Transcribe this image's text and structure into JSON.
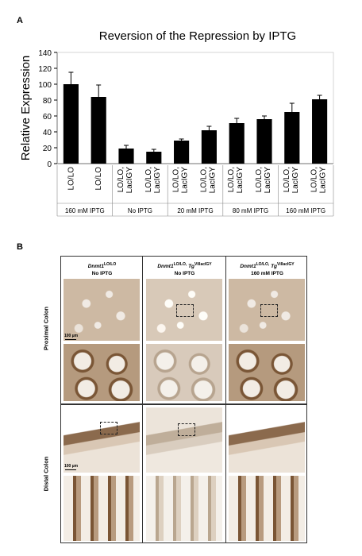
{
  "panel_a": {
    "letter": "A"
  },
  "panel_b": {
    "letter": "B",
    "columns": [
      {
        "gene": "Dnmt1",
        "genotype_sup": "LO/LO",
        "transgene": "",
        "transgene_sup": "",
        "treatment": "No IPTG"
      },
      {
        "gene": "Dnmt1",
        "genotype_sup": "LO/LO,",
        "transgene": "Tg",
        "transgene_sup": "VillacIGY",
        "treatment": "No IPTG"
      },
      {
        "gene": "Dnmt1",
        "genotype_sup": "LO/LO,",
        "transgene": "Tg",
        "transgene_sup": "VillacIGY",
        "treatment": "160 mM IPTG"
      }
    ],
    "rows": [
      "Proximal Colon",
      "Distal Colon"
    ],
    "scale_label": "100 µm"
  },
  "chart_data": {
    "type": "bar",
    "title": "Reversion of the Repression by IPTG",
    "ylabel": "Relative Expression",
    "xlabel": "",
    "ylim": [
      0,
      140
    ],
    "yticks": [
      0,
      20,
      40,
      60,
      80,
      100,
      120,
      140
    ],
    "grid": false,
    "color": "#000000",
    "categories": [
      "LO/LO",
      "LO/LO",
      "LO/LO, LacIGY",
      "LO/LO, LacIGY",
      "LO/LO, LacIGY",
      "LO/LO, LacIGY",
      "LO/LO, LacIGY",
      "LO/LO, LacIGY",
      "LO/LO, LacIGY",
      "LO/LO, LacIGY"
    ],
    "values": [
      100,
      84,
      19,
      15,
      29,
      42,
      51,
      56,
      65,
      81
    ],
    "errors": [
      15,
      15,
      4,
      3,
      2,
      5,
      6,
      4,
      11,
      5
    ],
    "groups": [
      {
        "label": "160 mM IPTG",
        "count": 2
      },
      {
        "label": "No IPTG",
        "count": 2
      },
      {
        "label": "20 mM IPTG",
        "count": 2
      },
      {
        "label": "80 mM IPTG",
        "count": 2
      },
      {
        "label": "160 mM IPTG",
        "count": 2
      }
    ]
  }
}
